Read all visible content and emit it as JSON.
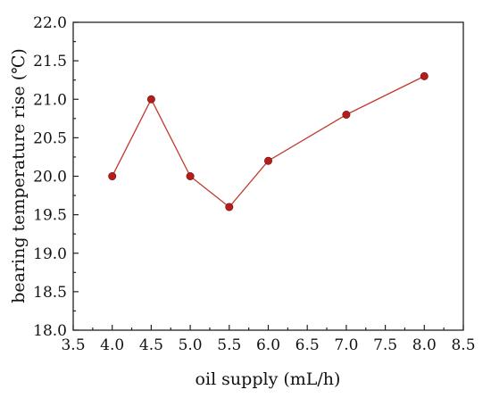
{
  "chart_data": {
    "type": "line",
    "xlabel": "oil supply (mL/h)",
    "ylabel": "bearing temperature rise (℃)",
    "xlim": [
      3.5,
      8.5
    ],
    "ylim": [
      18.0,
      22.0
    ],
    "xticks": [
      "3.5",
      "4.0",
      "4.5",
      "5.0",
      "5.5",
      "6.0",
      "6.5",
      "7.0",
      "7.5",
      "8.0",
      "8.5"
    ],
    "yticks": [
      "18.0",
      "18.5",
      "19.0",
      "19.5",
      "20.0",
      "20.5",
      "21.0",
      "21.5",
      "22.0"
    ],
    "grid": false,
    "series": [
      {
        "x": [
          4.0,
          4.5,
          5.0,
          5.5,
          6.0,
          7.0,
          8.0
        ],
        "y": [
          20.0,
          21.0,
          20.0,
          19.6,
          20.2,
          20.8,
          21.3
        ],
        "color": "#b71c1c"
      }
    ]
  }
}
